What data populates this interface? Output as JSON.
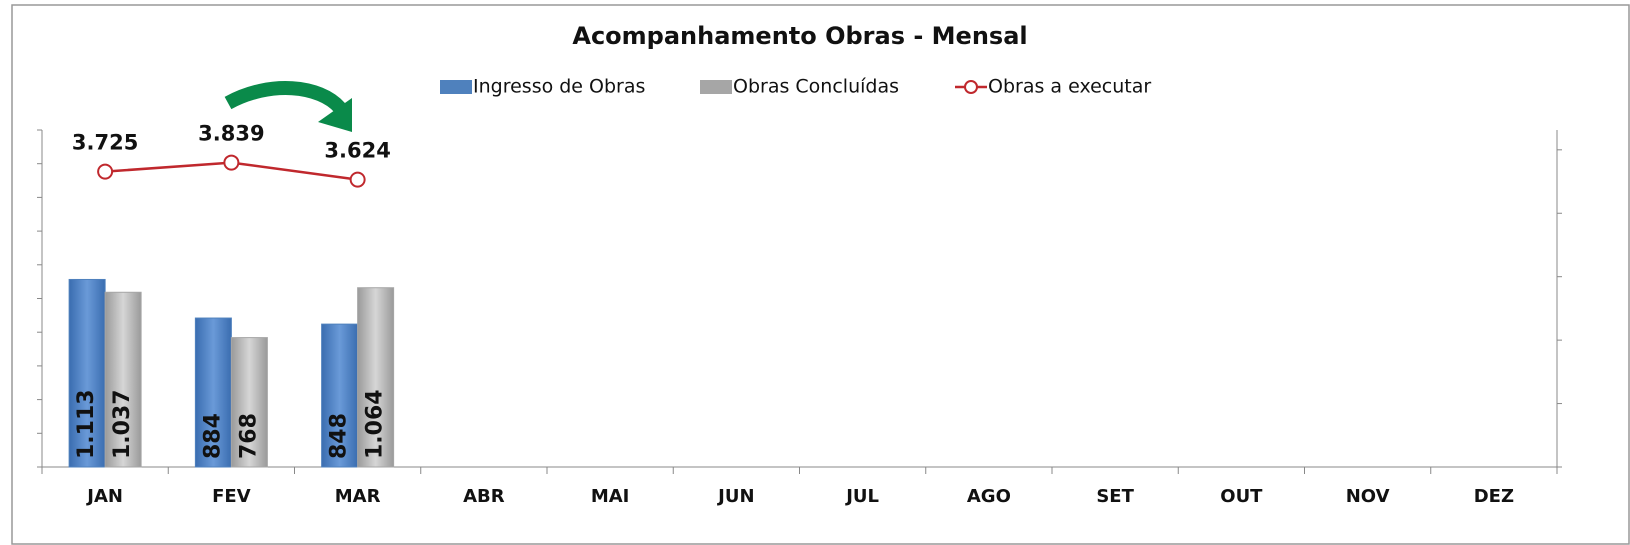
{
  "chart_data": {
    "type": "bar-line",
    "title": "Acompanhamento Obras - Mensal",
    "categories": [
      "JAN",
      "FEV",
      "MAR",
      "ABR",
      "MAI",
      "JUN",
      "JUL",
      "AGO",
      "SET",
      "OUT",
      "NOV",
      "DEZ"
    ],
    "series": [
      {
        "name": "Ingresso de Obras",
        "type": "bar",
        "color": "#4f81bd",
        "values": [
          1113,
          884,
          848,
          null,
          null,
          null,
          null,
          null,
          null,
          null,
          null,
          null
        ],
        "value_labels": [
          "1.113",
          "884",
          "848",
          null,
          null,
          null,
          null,
          null,
          null,
          null,
          null,
          null
        ]
      },
      {
        "name": "Obras Concluídas",
        "type": "bar",
        "color": "#a6a6a6",
        "values": [
          1037,
          768,
          1064,
          null,
          null,
          null,
          null,
          null,
          null,
          null,
          null,
          null
        ],
        "value_labels": [
          "1.037",
          "768",
          "1.064",
          null,
          null,
          null,
          null,
          null,
          null,
          null,
          null,
          null
        ]
      },
      {
        "name": "Obras a executar",
        "type": "line",
        "axis": "y2",
        "color": "#c0282d",
        "values": [
          3725,
          3839,
          3624,
          null,
          null,
          null,
          null,
          null,
          null,
          null,
          null,
          null
        ],
        "value_labels": [
          "3.725",
          "3.839",
          "3.624",
          null,
          null,
          null,
          null,
          null,
          null,
          null,
          null,
          null
        ]
      }
    ],
    "ylim": [
      0,
      2000
    ],
    "yticks": [
      0,
      200,
      400,
      600,
      800,
      1000,
      1200,
      1400,
      1600,
      1800,
      2000
    ],
    "y2lim": [
      0,
      4250
    ],
    "y2ticks": [
      0,
      800,
      1600,
      2400,
      3200,
      4000
    ],
    "legend": "top"
  }
}
